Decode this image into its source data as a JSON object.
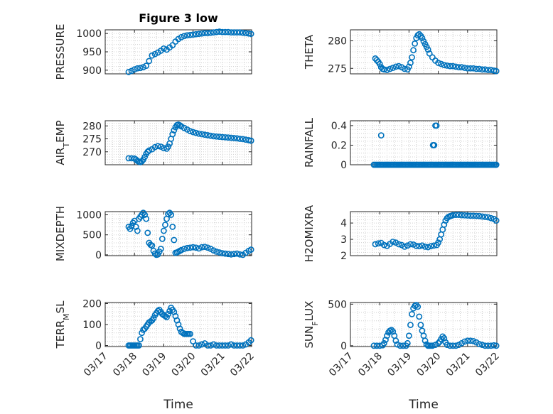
{
  "figure": {
    "title": "Figure 3 low",
    "xlabel": "Time"
  },
  "chart_data": [
    {
      "type": "scatter",
      "ylabel": "PRESSURE",
      "ylabel_sub": "",
      "title": "Figure 3 low",
      "x_ticks": [
        "03/17",
        "03/18",
        "03/19",
        "03/20",
        "03/21",
        "03/22"
      ],
      "xlim": [
        0,
        5
      ],
      "ylim": [
        890,
        1010
      ],
      "yticks": [
        900,
        950,
        1000
      ],
      "grid": true,
      "color": "#0072BD",
      "x": [
        0.8,
        0.9,
        1.0,
        1.1,
        1.2,
        1.3,
        1.4,
        1.5,
        1.6,
        1.7,
        1.8,
        1.9,
        2.0,
        2.1,
        2.2,
        2.3,
        2.4,
        2.5,
        2.6,
        2.7,
        2.8,
        2.9,
        3.0,
        3.1,
        3.2,
        3.3,
        3.4,
        3.5,
        3.6,
        3.7,
        3.8,
        3.9,
        4.0,
        4.1,
        4.2,
        4.3,
        4.4,
        4.5,
        4.6,
        4.7,
        4.8,
        4.9,
        4.98
      ],
      "y": [
        895,
        898,
        902,
        905,
        906,
        908,
        912,
        925,
        940,
        944,
        948,
        953,
        959,
        956,
        962,
        968,
        978,
        985,
        990,
        993,
        995,
        996,
        997,
        998,
        999,
        1000,
        1001,
        1001,
        1002,
        1003,
        1004,
        1005,
        1004,
        1004,
        1004,
        1003,
        1003,
        1003,
        1003,
        1002,
        1001,
        1000,
        999
      ]
    },
    {
      "type": "scatter",
      "ylabel": "THETA",
      "ylabel_sub": "",
      "x_ticks": [
        "03/17",
        "03/18",
        "03/19",
        "03/20",
        "03/21",
        "03/22"
      ],
      "xlim": [
        0,
        5
      ],
      "ylim": [
        274,
        282
      ],
      "yticks": [
        275,
        280
      ],
      "grid": true,
      "color": "#0072BD",
      "x": [
        0.85,
        0.9,
        0.95,
        1.0,
        1.05,
        1.1,
        1.15,
        1.25,
        1.35,
        1.45,
        1.55,
        1.65,
        1.75,
        1.85,
        1.95,
        2.0,
        2.05,
        2.1,
        2.15,
        2.2,
        2.25,
        2.3,
        2.35,
        2.4,
        2.45,
        2.5,
        2.55,
        2.6,
        2.65,
        2.7,
        2.8,
        2.9,
        3.0,
        3.1,
        3.2,
        3.3,
        3.4,
        3.5,
        3.6,
        3.7,
        3.8,
        3.9,
        4.0,
        4.1,
        4.2,
        4.3,
        4.4,
        4.5,
        4.6,
        4.7,
        4.8,
        4.9,
        4.98
      ],
      "y": [
        276.8,
        276.5,
        276.2,
        275.8,
        275.2,
        274.9,
        274.8,
        274.7,
        274.9,
        275.1,
        275.3,
        275.4,
        275.2,
        274.9,
        274.8,
        275.3,
        276.0,
        277.0,
        278.3,
        279.5,
        280.5,
        281.0,
        281.2,
        280.9,
        280.5,
        279.9,
        279.4,
        278.9,
        278.4,
        277.7,
        277.0,
        276.4,
        276.0,
        275.8,
        275.6,
        275.5,
        275.4,
        275.4,
        275.3,
        275.2,
        275.2,
        275.1,
        275.0,
        275.0,
        275.0,
        274.9,
        274.9,
        274.8,
        274.8,
        274.7,
        274.7,
        274.6,
        274.5
      ]
    },
    {
      "type": "scatter",
      "ylabel": "AIR",
      "ylabel_sub": "T",
      "ylabel_after": "EMP",
      "x_ticks": [
        "03/17",
        "03/18",
        "03/19",
        "03/20",
        "03/21",
        "03/22"
      ],
      "xlim": [
        0,
        5
      ],
      "ylim": [
        265,
        282
      ],
      "yticks": [
        270,
        275,
        280
      ],
      "grid": true,
      "color": "#0072BD",
      "x": [
        0.8,
        0.9,
        1.0,
        1.05,
        1.1,
        1.15,
        1.2,
        1.25,
        1.3,
        1.35,
        1.4,
        1.45,
        1.5,
        1.6,
        1.7,
        1.8,
        1.9,
        2.0,
        2.1,
        2.15,
        2.2,
        2.25,
        2.3,
        2.35,
        2.4,
        2.45,
        2.5,
        2.55,
        2.6,
        2.7,
        2.8,
        2.9,
        3.0,
        3.1,
        3.2,
        3.3,
        3.4,
        3.5,
        3.6,
        3.7,
        3.8,
        3.9,
        4.0,
        4.1,
        4.2,
        4.3,
        4.4,
        4.5,
        4.6,
        4.7,
        4.8,
        4.9,
        4.98
      ],
      "y": [
        267.5,
        267.5,
        267.4,
        267.0,
        266.5,
        266.2,
        266.0,
        266.3,
        267.0,
        268.0,
        269.2,
        270.0,
        270.5,
        271.0,
        271.8,
        272.2,
        272.0,
        271.4,
        271.2,
        272.0,
        273.2,
        275.0,
        276.8,
        278.3,
        279.5,
        280.3,
        280.5,
        280.2,
        279.8,
        279.2,
        278.6,
        278.0,
        277.6,
        277.3,
        277.0,
        276.8,
        276.6,
        276.4,
        276.2,
        276.0,
        275.9,
        275.8,
        275.7,
        275.6,
        275.5,
        275.4,
        275.3,
        275.2,
        275.0,
        274.9,
        274.7,
        274.5,
        274.3
      ]
    },
    {
      "type": "scatter",
      "ylabel": "RAINFALL",
      "ylabel_sub": "",
      "x_ticks": [
        "03/17",
        "03/18",
        "03/19",
        "03/20",
        "03/21",
        "03/22"
      ],
      "xlim": [
        0,
        5
      ],
      "ylim": [
        0,
        0.45
      ],
      "yticks": [
        0,
        0.2,
        0.4
      ],
      "ytick_labels": [
        "0",
        "0.2",
        "0.4"
      ],
      "grid": true,
      "color": "#0072BD",
      "x": [
        0.8,
        0.85,
        0.9,
        0.95,
        1.0,
        1.05,
        1.1,
        1.15,
        1.2,
        1.25,
        1.3,
        1.35,
        1.4,
        1.45,
        1.5,
        1.55,
        1.6,
        1.65,
        1.7,
        1.75,
        1.8,
        1.85,
        1.9,
        1.95,
        2.0,
        2.05,
        2.1,
        2.15,
        2.2,
        2.25,
        2.3,
        2.35,
        2.4,
        2.45,
        2.5,
        2.55,
        2.6,
        2.65,
        2.7,
        2.75,
        2.8,
        2.85,
        2.9,
        2.95,
        3.0,
        3.05,
        3.1,
        3.15,
        3.2,
        3.25,
        3.3,
        3.35,
        3.4,
        3.45,
        3.5,
        3.55,
        3.6,
        3.65,
        3.7,
        3.75,
        3.8,
        3.85,
        3.9,
        3.95,
        4.0,
        4.05,
        4.1,
        4.15,
        4.2,
        4.25,
        4.3,
        4.35,
        4.4,
        4.45,
        4.5,
        4.55,
        4.6,
        4.65,
        4.7,
        4.75,
        4.8,
        4.85,
        4.9,
        4.95,
        4.98,
        1.05,
        2.82,
        2.86,
        2.9,
        2.94
      ],
      "y": [
        0,
        0,
        0,
        0,
        0,
        0,
        0,
        0,
        0,
        0,
        0,
        0,
        0,
        0,
        0,
        0,
        0,
        0,
        0,
        0,
        0,
        0,
        0,
        0,
        0,
        0,
        0,
        0,
        0,
        0,
        0,
        0,
        0,
        0,
        0,
        0,
        0,
        0,
        0,
        0,
        0,
        0,
        0,
        0,
        0,
        0,
        0,
        0,
        0,
        0,
        0,
        0,
        0,
        0,
        0,
        0,
        0,
        0,
        0,
        0,
        0,
        0,
        0,
        0,
        0,
        0,
        0,
        0,
        0,
        0,
        0,
        0,
        0,
        0,
        0,
        0,
        0,
        0,
        0,
        0,
        0,
        0,
        0,
        0,
        0,
        0.3,
        0.2,
        0.2,
        0.4,
        0.4
      ]
    },
    {
      "type": "scatter",
      "ylabel": "MIXDEPTH",
      "ylabel_sub": "",
      "x_ticks": [
        "03/17",
        "03/18",
        "03/19",
        "03/20",
        "03/21",
        "03/22"
      ],
      "xlim": [
        0,
        5
      ],
      "ylim": [
        -20,
        1080
      ],
      "yticks": [
        0,
        500,
        1000
      ],
      "grid": true,
      "color": "#0072BD",
      "x": [
        0.8,
        0.85,
        0.9,
        0.95,
        1.0,
        1.05,
        1.1,
        1.15,
        1.2,
        1.25,
        1.3,
        1.35,
        1.4,
        1.45,
        1.5,
        1.55,
        1.6,
        1.65,
        1.7,
        1.75,
        1.8,
        1.85,
        1.9,
        1.95,
        2.0,
        2.05,
        2.1,
        2.15,
        2.2,
        2.25,
        2.3,
        2.35,
        2.4,
        2.45,
        2.5,
        2.55,
        2.6,
        2.7,
        2.8,
        2.9,
        3.0,
        3.1,
        3.2,
        3.3,
        3.4,
        3.5,
        3.6,
        3.7,
        3.8,
        3.9,
        4.0,
        4.1,
        4.2,
        4.3,
        4.4,
        4.5,
        4.6,
        4.7,
        4.8,
        4.9,
        4.98
      ],
      "y": [
        700,
        650,
        720,
        800,
        850,
        700,
        600,
        900,
        950,
        1000,
        1050,
        1000,
        900,
        550,
        300,
        250,
        230,
        100,
        30,
        0,
        10,
        80,
        150,
        400,
        600,
        750,
        900,
        1020,
        1050,
        1000,
        700,
        370,
        50,
        60,
        80,
        100,
        120,
        150,
        170,
        180,
        190,
        180,
        160,
        190,
        200,
        180,
        150,
        110,
        80,
        60,
        40,
        30,
        20,
        10,
        20,
        30,
        10,
        0,
        50,
        100,
        130
      ]
    },
    {
      "type": "scatter",
      "ylabel": "H2OMIXRA",
      "ylabel_sub": "",
      "x_ticks": [
        "03/17",
        "03/18",
        "03/19",
        "03/20",
        "03/21",
        "03/22"
      ],
      "xlim": [
        0,
        5
      ],
      "ylim": [
        2,
        4.7
      ],
      "yticks": [
        2,
        3,
        4
      ],
      "grid": true,
      "color": "#0072BD",
      "x": [
        0.85,
        0.95,
        1.05,
        1.15,
        1.25,
        1.35,
        1.45,
        1.55,
        1.65,
        1.75,
        1.85,
        1.95,
        2.05,
        2.15,
        2.25,
        2.35,
        2.45,
        2.55,
        2.65,
        2.75,
        2.85,
        2.95,
        3.0,
        3.05,
        3.1,
        3.15,
        3.2,
        3.25,
        3.3,
        3.35,
        3.4,
        3.45,
        3.5,
        3.6,
        3.7,
        3.8,
        3.9,
        4.0,
        4.1,
        4.2,
        4.3,
        4.4,
        4.5,
        4.6,
        4.7,
        4.8,
        4.9,
        4.98
      ],
      "y": [
        2.7,
        2.75,
        2.78,
        2.65,
        2.6,
        2.72,
        2.85,
        2.8,
        2.7,
        2.65,
        2.55,
        2.62,
        2.7,
        2.68,
        2.6,
        2.58,
        2.62,
        2.55,
        2.52,
        2.58,
        2.62,
        2.65,
        2.8,
        3.0,
        3.3,
        3.6,
        3.9,
        4.15,
        4.3,
        4.38,
        4.42,
        4.45,
        4.48,
        4.5,
        4.5,
        4.48,
        4.47,
        4.46,
        4.45,
        4.45,
        4.44,
        4.43,
        4.4,
        4.38,
        4.35,
        4.3,
        4.25,
        4.15
      ]
    },
    {
      "type": "scatter",
      "ylabel": "TERR",
      "ylabel_sub": "M",
      "ylabel_after": "SL",
      "x_ticks": [
        "03/17",
        "03/18",
        "03/19",
        "03/20",
        "03/21",
        "03/22"
      ],
      "xlim": [
        0,
        5
      ],
      "ylim": [
        -5,
        205
      ],
      "yticks": [
        0,
        100,
        200
      ],
      "grid": true,
      "color": "#0072BD",
      "x": [
        0.8,
        0.85,
        0.9,
        0.95,
        1.0,
        1.05,
        1.1,
        1.15,
        1.2,
        1.25,
        1.3,
        1.35,
        1.4,
        1.45,
        1.5,
        1.55,
        1.6,
        1.65,
        1.7,
        1.75,
        1.8,
        1.85,
        1.9,
        1.95,
        2.0,
        2.05,
        2.1,
        2.15,
        2.2,
        2.25,
        2.3,
        2.35,
        2.4,
        2.45,
        2.5,
        2.55,
        2.6,
        2.65,
        2.7,
        2.75,
        2.8,
        2.85,
        2.9,
        3.0,
        3.1,
        3.2,
        3.3,
        3.4,
        3.5,
        3.6,
        3.7,
        3.8,
        3.9,
        4.0,
        4.1,
        4.2,
        4.3,
        4.4,
        4.5,
        4.6,
        4.7,
        4.8,
        4.9,
        4.98
      ],
      "y": [
        0,
        0,
        0,
        0,
        0,
        0,
        0,
        0,
        30,
        60,
        75,
        80,
        90,
        100,
        110,
        115,
        120,
        130,
        145,
        155,
        165,
        170,
        160,
        150,
        145,
        140,
        135,
        150,
        165,
        180,
        170,
        160,
        140,
        120,
        100,
        80,
        65,
        60,
        55,
        55,
        55,
        55,
        55,
        20,
        0,
        0,
        5,
        10,
        0,
        0,
        5,
        0,
        0,
        0,
        0,
        0,
        5,
        0,
        0,
        0,
        0,
        5,
        15,
        25
      ]
    },
    {
      "type": "scatter",
      "ylabel": "SUN",
      "ylabel_sub": "F",
      "ylabel_after": "LUX",
      "x_ticks": [
        "03/17",
        "03/18",
        "03/19",
        "03/20",
        "03/21",
        "03/22"
      ],
      "xlim": [
        0,
        5
      ],
      "ylim": [
        -10,
        520
      ],
      "yticks": [
        0,
        500
      ],
      "grid": true,
      "color": "#0072BD",
      "x": [
        0.8,
        0.9,
        1.0,
        1.1,
        1.15,
        1.2,
        1.25,
        1.3,
        1.35,
        1.4,
        1.45,
        1.5,
        1.55,
        1.6,
        1.7,
        1.8,
        1.9,
        1.95,
        2.0,
        2.05,
        2.1,
        2.15,
        2.2,
        2.25,
        2.3,
        2.35,
        2.4,
        2.45,
        2.5,
        2.55,
        2.6,
        2.65,
        2.7,
        2.75,
        2.8,
        2.9,
        3.0,
        3.05,
        3.1,
        3.15,
        3.2,
        3.25,
        3.3,
        3.4,
        3.5,
        3.6,
        3.7,
        3.8,
        3.9,
        4.0,
        4.1,
        4.2,
        4.3,
        4.4,
        4.5,
        4.6,
        4.7,
        4.8,
        4.9,
        4.98
      ],
      "y": [
        0,
        0,
        0,
        5,
        30,
        70,
        120,
        160,
        180,
        190,
        170,
        120,
        60,
        15,
        0,
        0,
        0,
        30,
        120,
        250,
        380,
        450,
        480,
        490,
        470,
        350,
        250,
        180,
        120,
        60,
        15,
        0,
        0,
        0,
        0,
        10,
        30,
        50,
        80,
        110,
        90,
        40,
        10,
        0,
        0,
        0,
        10,
        30,
        50,
        60,
        60,
        55,
        40,
        20,
        10,
        0,
        0,
        0,
        5,
        0
      ]
    }
  ]
}
